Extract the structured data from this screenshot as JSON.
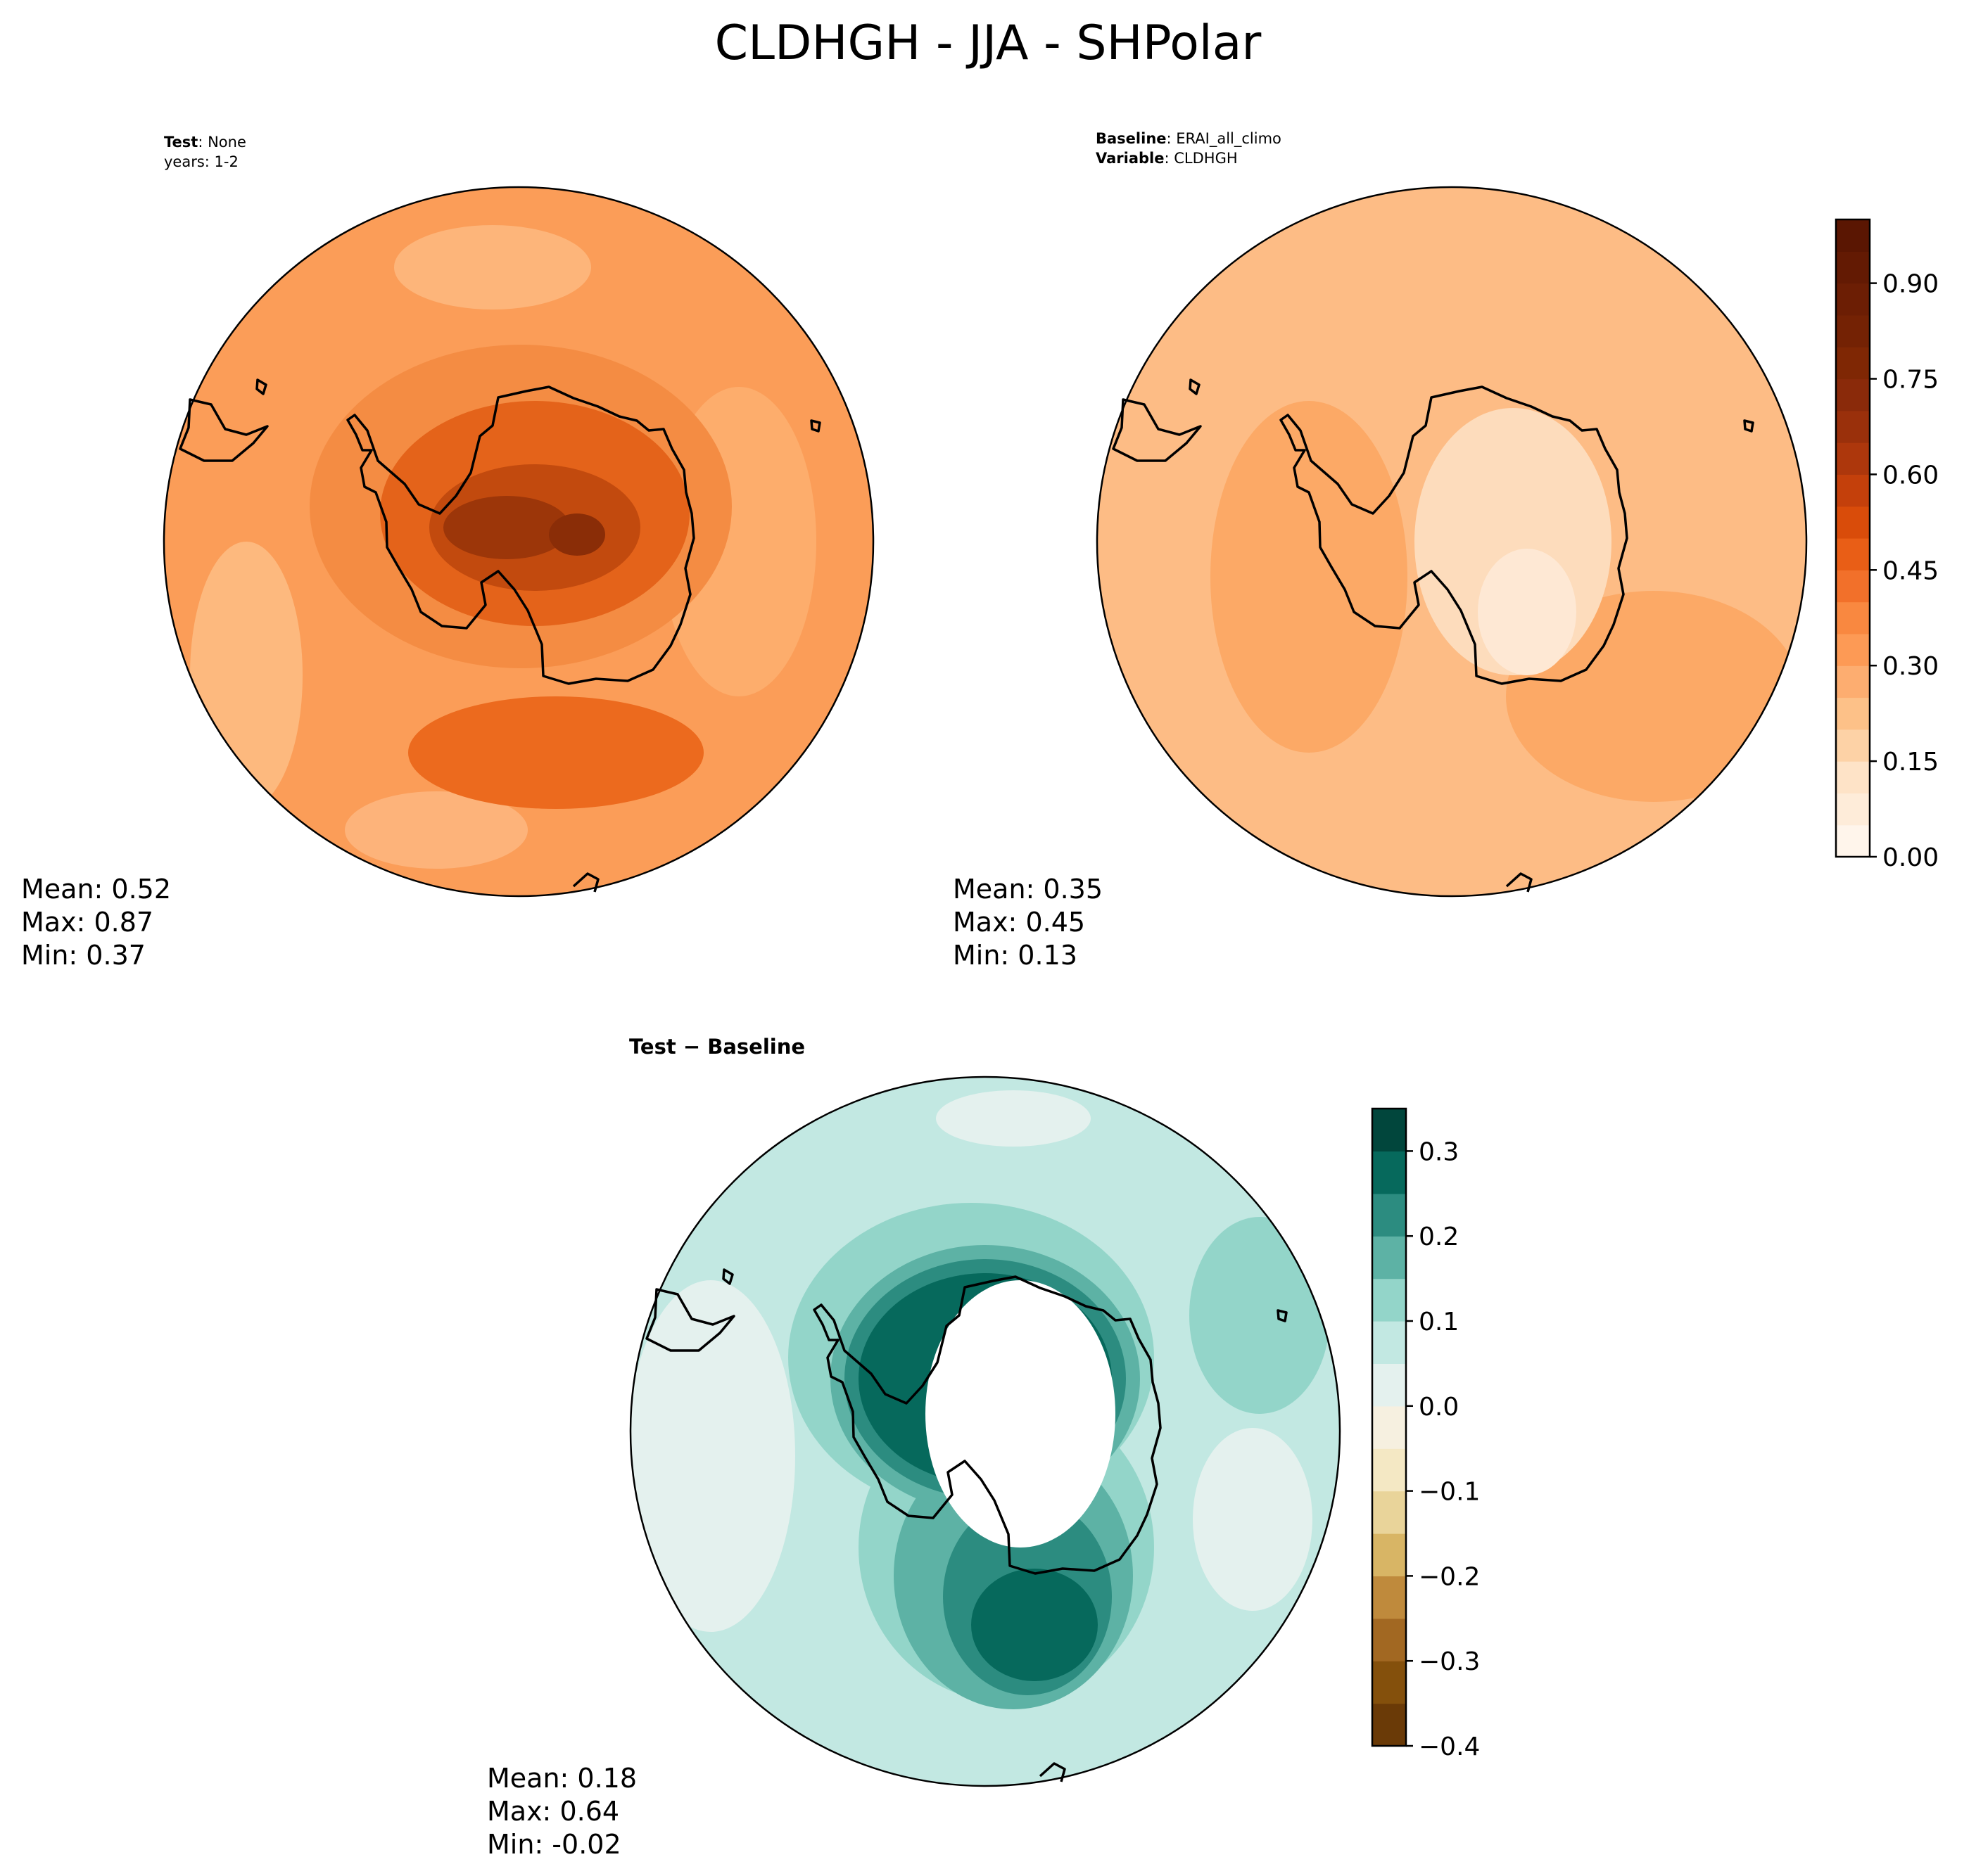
{
  "figure": {
    "title": "CLDHGH - JJA - SHPolar"
  },
  "panels": {
    "test": {
      "label_key": "Test",
      "label_sep": ": ",
      "label_value": "None",
      "years": "years: 1-2",
      "stats": {
        "mean": "Mean:  0.52",
        "max": "Max:  0.87",
        "min": "Min:  0.37"
      }
    },
    "baseline": {
      "label_key": "Baseline",
      "label_sep": ": ",
      "label_value": "ERAI_all_climo",
      "var_key": "Variable",
      "var_sep": ": ",
      "var_value": "CLDHGH",
      "stats": {
        "mean": "Mean:  0.35",
        "max": "Max:  0.45",
        "min": "Min:  0.13"
      }
    },
    "diff": {
      "title_a": "Test",
      "title_op": " − ",
      "title_b": "Baseline",
      "stats": {
        "mean": "Mean:  0.18",
        "max": "Max:  0.64",
        "min": "Min: -0.02"
      }
    }
  },
  "chart_data": [
    {
      "type": "heatmap",
      "name": "Test",
      "projection": "south polar stereographic",
      "value_range": [
        0.37,
        0.87
      ],
      "mean": 0.52,
      "colorbar": "shared with Baseline"
    },
    {
      "type": "heatmap",
      "name": "Baseline",
      "projection": "south polar stereographic",
      "value_range": [
        0.13,
        0.45
      ],
      "mean": 0.35,
      "colorbar": {
        "range": [
          0.0,
          1.0
        ],
        "levels": 20,
        "tick_values": [
          0.0,
          0.15,
          0.3,
          0.45,
          0.6,
          0.75,
          0.9
        ],
        "tick_labels": [
          "0.00",
          "0.15",
          "0.30",
          "0.45",
          "0.60",
          "0.75",
          "0.90"
        ],
        "colors": [
          "#fff5eb",
          "#feecd9",
          "#fee3c7",
          "#fdd2a6",
          "#fdc188",
          "#fdad70",
          "#fd9a55",
          "#f98840",
          "#f2702a",
          "#e95e16",
          "#d94c0a",
          "#c4400b",
          "#ad370c",
          "#9a300b",
          "#8a2a0a",
          "#7f2704",
          "#742204",
          "#6c1e04",
          "#631a03",
          "#5a1602"
        ]
      }
    },
    {
      "type": "heatmap",
      "name": "Test - Baseline",
      "projection": "south polar stereographic",
      "value_range": [
        -0.02,
        0.64
      ],
      "mean": 0.18,
      "colorbar": {
        "range": [
          -0.4,
          0.35
        ],
        "levels": 15,
        "tick_values": [
          -0.4,
          -0.3,
          -0.2,
          -0.1,
          0.0,
          0.1,
          0.2,
          0.3
        ],
        "tick_labels": [
          "−0.4",
          "−0.3",
          "−0.2",
          "−0.1",
          "0.0",
          "0.1",
          "0.2",
          "0.3"
        ],
        "colors": [
          "#6a3a07",
          "#84500c",
          "#a26822",
          "#bf8a3c",
          "#d8b565",
          "#e9d49a",
          "#f4e8c4",
          "#f6f0e0",
          "#e4f1ee",
          "#c2e8e2",
          "#93d5c9",
          "#5db2a5",
          "#2c8c80",
          "#06695c",
          "#01463c"
        ]
      }
    }
  ],
  "colors": {
    "land_outline": "#000000",
    "hole": "#ffffff"
  }
}
